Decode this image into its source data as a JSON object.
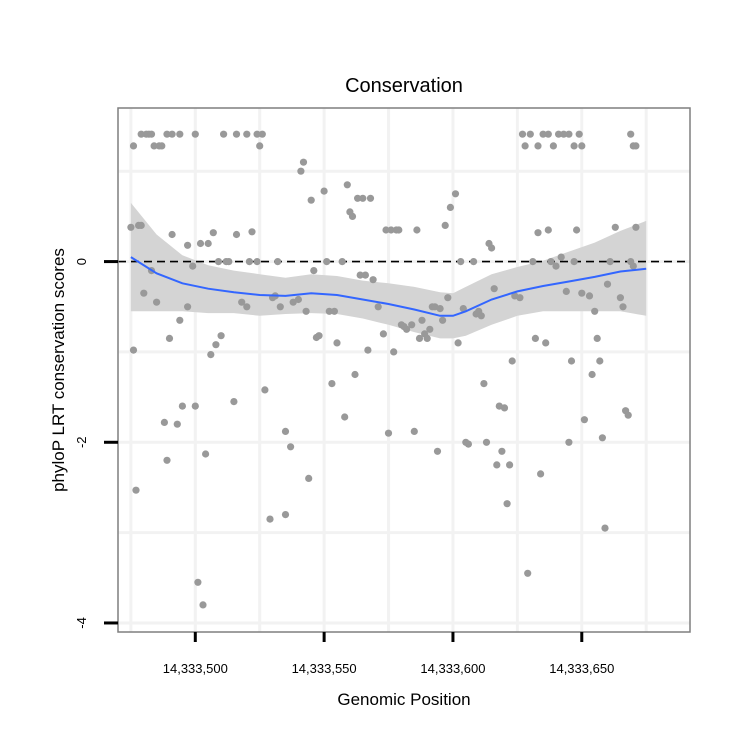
{
  "chart_data": {
    "type": "scatter",
    "title": "Conservation",
    "xlabel": "Genomic Position",
    "ylabel": "phyloP LRT conservation scores",
    "xlim": [
      14333470,
      14333692
    ],
    "ylim": [
      -4.1,
      1.7
    ],
    "x_ticks": [
      14333500,
      14333550,
      14333600,
      14333650
    ],
    "x_tick_labels": [
      "14,333,500",
      "14,333,550",
      "14,333,600",
      "14,333,650"
    ],
    "y_ticks": [
      -4,
      -2,
      0
    ],
    "y_tick_labels": [
      "-4",
      "-2",
      "0"
    ],
    "reference_line": {
      "y": 0,
      "style": "dashed"
    },
    "colors": {
      "points": "#999999",
      "smooth": "#3366ff",
      "band": "#d4d4d4",
      "frame": "#7f7f7f",
      "grid": "#f2f2f2"
    },
    "points": [
      [
        14333476,
        1.28
      ],
      [
        14333479,
        1.41
      ],
      [
        14333481,
        1.41
      ],
      [
        14333482,
        1.41
      ],
      [
        14333483,
        1.41
      ],
      [
        14333484,
        1.28
      ],
      [
        14333486,
        1.28
      ],
      [
        14333487,
        1.28
      ],
      [
        14333489,
        1.41
      ],
      [
        14333491,
        1.41
      ],
      [
        14333494,
        1.41
      ],
      [
        14333500,
        1.41
      ],
      [
        14333511,
        1.41
      ],
      [
        14333516,
        1.41
      ],
      [
        14333520,
        1.41
      ],
      [
        14333524,
        1.41
      ],
      [
        14333525,
        1.28
      ],
      [
        14333526,
        1.41
      ],
      [
        14333627,
        1.41
      ],
      [
        14333628,
        1.28
      ],
      [
        14333630,
        1.41
      ],
      [
        14333633,
        1.28
      ],
      [
        14333635,
        1.41
      ],
      [
        14333637,
        1.41
      ],
      [
        14333639,
        1.28
      ],
      [
        14333641,
        1.41
      ],
      [
        14333643,
        1.41
      ],
      [
        14333645,
        1.41
      ],
      [
        14333647,
        1.28
      ],
      [
        14333649,
        1.41
      ],
      [
        14333650,
        1.28
      ],
      [
        14333669,
        1.41
      ],
      [
        14333670,
        1.28
      ],
      [
        14333671,
        1.28
      ],
      [
        14333475,
        0.38
      ],
      [
        14333478,
        0.4
      ],
      [
        14333479,
        0.4
      ],
      [
        14333480,
        -0.35
      ],
      [
        14333483,
        -0.1
      ],
      [
        14333485,
        -0.45
      ],
      [
        14333490,
        -0.85
      ],
      [
        14333491,
        0.3
      ],
      [
        14333494,
        -0.65
      ],
      [
        14333497,
        0.18
      ],
      [
        14333499,
        -0.05
      ],
      [
        14333502,
        0.2
      ],
      [
        14333505,
        0.2
      ],
      [
        14333507,
        0.32
      ],
      [
        14333509,
        0.0
      ],
      [
        14333512,
        0.0
      ],
      [
        14333513,
        0.0
      ],
      [
        14333516,
        0.3
      ],
      [
        14333518,
        -0.45
      ],
      [
        14333520,
        -0.5
      ],
      [
        14333521,
        0.0
      ],
      [
        14333524,
        0.0
      ],
      [
        14333476,
        -0.98
      ],
      [
        14333477,
        -2.53
      ],
      [
        14333488,
        -1.78
      ],
      [
        14333489,
        -2.2
      ],
      [
        14333493,
        -1.8
      ],
      [
        14333495,
        -1.6
      ],
      [
        14333497,
        -0.5
      ],
      [
        14333500,
        -1.6
      ],
      [
        14333501,
        -3.55
      ],
      [
        14333503,
        -3.8
      ],
      [
        14333504,
        -2.13
      ],
      [
        14333506,
        -1.03
      ],
      [
        14333508,
        -0.92
      ],
      [
        14333510,
        -0.82
      ],
      [
        14333515,
        -1.55
      ],
      [
        14333527,
        -1.42
      ],
      [
        14333530,
        -0.4
      ],
      [
        14333531,
        -0.38
      ],
      [
        14333532,
        0.0
      ],
      [
        14333533,
        -0.5
      ],
      [
        14333535,
        -1.88
      ],
      [
        14333537,
        -2.05
      ],
      [
        14333538,
        -0.45
      ],
      [
        14333540,
        -0.42
      ],
      [
        14333541,
        1.0
      ],
      [
        14333542,
        1.1
      ],
      [
        14333543,
        -0.55
      ],
      [
        14333544,
        -2.4
      ],
      [
        14333545,
        0.68
      ],
      [
        14333546,
        -0.1
      ],
      [
        14333547,
        -0.84
      ],
      [
        14333548,
        -0.82
      ],
      [
        14333550,
        0.78
      ],
      [
        14333551,
        0.0
      ],
      [
        14333552,
        -0.55
      ],
      [
        14333553,
        -1.35
      ],
      [
        14333554,
        -0.55
      ],
      [
        14333555,
        -0.9
      ],
      [
        14333557,
        0.0
      ],
      [
        14333558,
        -1.72
      ],
      [
        14333559,
        0.85
      ],
      [
        14333560,
        0.55
      ],
      [
        14333561,
        0.5
      ],
      [
        14333562,
        -1.25
      ],
      [
        14333563,
        0.7
      ],
      [
        14333564,
        -0.15
      ],
      [
        14333565,
        0.7
      ],
      [
        14333566,
        -0.15
      ],
      [
        14333567,
        -0.98
      ],
      [
        14333568,
        0.7
      ],
      [
        14333569,
        -0.2
      ],
      [
        14333571,
        -0.5
      ],
      [
        14333573,
        -0.8
      ],
      [
        14333535,
        -2.8
      ],
      [
        14333529,
        -2.85
      ],
      [
        14333522,
        0.33
      ],
      [
        14333574,
        0.35
      ],
      [
        14333575,
        -1.9
      ],
      [
        14333576,
        0.35
      ],
      [
        14333577,
        -1.0
      ],
      [
        14333578,
        0.35
      ],
      [
        14333579,
        0.35
      ],
      [
        14333580,
        -0.7
      ],
      [
        14333581,
        -0.72
      ],
      [
        14333582,
        -0.75
      ],
      [
        14333584,
        -0.7
      ],
      [
        14333585,
        -1.88
      ],
      [
        14333586,
        0.35
      ],
      [
        14333587,
        -0.85
      ],
      [
        14333588,
        -0.65
      ],
      [
        14333589,
        -0.8
      ],
      [
        14333590,
        -0.85
      ],
      [
        14333591,
        -0.75
      ],
      [
        14333592,
        -0.5
      ],
      [
        14333593,
        -0.5
      ],
      [
        14333594,
        -2.1
      ],
      [
        14333595,
        -0.52
      ],
      [
        14333596,
        -0.65
      ],
      [
        14333597,
        0.4
      ],
      [
        14333598,
        -0.4
      ],
      [
        14333599,
        0.6
      ],
      [
        14333601,
        0.75
      ],
      [
        14333602,
        -0.9
      ],
      [
        14333603,
        0.0
      ],
      [
        14333604,
        -0.52
      ],
      [
        14333605,
        -2.0
      ],
      [
        14333606,
        -2.02
      ],
      [
        14333608,
        0.0
      ],
      [
        14333609,
        -0.58
      ],
      [
        14333610,
        -0.55
      ],
      [
        14333611,
        -0.6
      ],
      [
        14333612,
        -1.35
      ],
      [
        14333613,
        -2.0
      ],
      [
        14333614,
        0.2
      ],
      [
        14333615,
        0.15
      ],
      [
        14333616,
        -0.3
      ],
      [
        14333617,
        -2.25
      ],
      [
        14333618,
        -1.6
      ],
      [
        14333619,
        -2.1
      ],
      [
        14333620,
        -1.62
      ],
      [
        14333621,
        -2.68
      ],
      [
        14333622,
        -2.25
      ],
      [
        14333623,
        -1.1
      ],
      [
        14333624,
        -0.38
      ],
      [
        14333626,
        -0.4
      ],
      [
        14333629,
        -3.45
      ],
      [
        14333631,
        0.0
      ],
      [
        14333632,
        -0.85
      ],
      [
        14333633,
        0.32
      ],
      [
        14333634,
        -2.35
      ],
      [
        14333636,
        -0.9
      ],
      [
        14333637,
        0.35
      ],
      [
        14333638,
        0.0
      ],
      [
        14333640,
        -0.05
      ],
      [
        14333642,
        0.05
      ],
      [
        14333644,
        -0.33
      ],
      [
        14333645,
        -2.0
      ],
      [
        14333646,
        -1.1
      ],
      [
        14333647,
        0.0
      ],
      [
        14333648,
        0.35
      ],
      [
        14333650,
        -0.35
      ],
      [
        14333651,
        -1.75
      ],
      [
        14333653,
        -0.38
      ],
      [
        14333654,
        -1.25
      ],
      [
        14333655,
        -0.55
      ],
      [
        14333656,
        -0.85
      ],
      [
        14333657,
        -1.1
      ],
      [
        14333658,
        -1.95
      ],
      [
        14333659,
        -2.95
      ],
      [
        14333660,
        -0.25
      ],
      [
        14333661,
        0.0
      ],
      [
        14333663,
        0.38
      ],
      [
        14333665,
        -0.4
      ],
      [
        14333666,
        -0.5
      ],
      [
        14333667,
        -1.65
      ],
      [
        14333668,
        -1.7
      ],
      [
        14333669,
        0.0
      ],
      [
        14333670,
        -0.05
      ],
      [
        14333671,
        0.38
      ]
    ],
    "smooth": {
      "x": [
        14333475,
        14333485,
        14333495,
        14333505,
        14333515,
        14333525,
        14333535,
        14333545,
        14333555,
        14333565,
        14333575,
        14333585,
        14333595,
        14333600,
        14333605,
        14333615,
        14333625,
        14333635,
        14333645,
        14333655,
        14333665,
        14333675
      ],
      "y": [
        0.05,
        -0.13,
        -0.24,
        -0.3,
        -0.34,
        -0.37,
        -0.38,
        -0.35,
        -0.37,
        -0.42,
        -0.47,
        -0.53,
        -0.6,
        -0.6,
        -0.55,
        -0.42,
        -0.33,
        -0.27,
        -0.22,
        -0.17,
        -0.11,
        -0.08
      ],
      "lower": [
        -0.55,
        -0.55,
        -0.55,
        -0.57,
        -0.57,
        -0.6,
        -0.58,
        -0.57,
        -0.58,
        -0.63,
        -0.7,
        -0.78,
        -0.85,
        -0.85,
        -0.82,
        -0.7,
        -0.6,
        -0.55,
        -0.55,
        -0.55,
        -0.55,
        -0.6
      ],
      "upper": [
        0.65,
        0.3,
        0.07,
        -0.04,
        -0.1,
        -0.14,
        -0.18,
        -0.14,
        -0.16,
        -0.21,
        -0.24,
        -0.28,
        -0.34,
        -0.35,
        -0.28,
        -0.14,
        -0.06,
        0.01,
        0.11,
        0.21,
        0.34,
        0.45
      ]
    }
  }
}
